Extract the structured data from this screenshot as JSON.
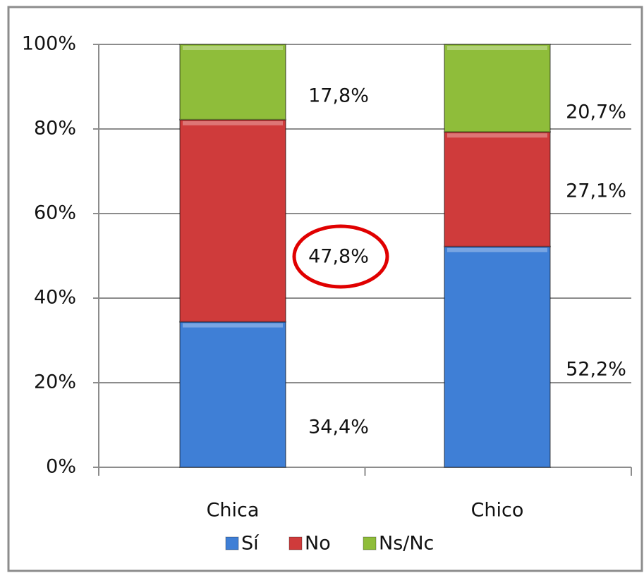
{
  "chart_data": {
    "type": "stacked_bar",
    "categories": [
      "Chica",
      "Chico"
    ],
    "series": [
      {
        "name": "Sí",
        "color": "#3f7fd6",
        "values": [
          34.4,
          52.2
        ],
        "value_labels": [
          "34,4%",
          "52,2%"
        ]
      },
      {
        "name": "No",
        "color": "#cf3b3b",
        "values": [
          47.8,
          27.1
        ],
        "value_labels": [
          "47,8%",
          "27,1%"
        ]
      },
      {
        "name": "Ns/Nc",
        "color": "#8fbd3a",
        "values": [
          17.8,
          20.7
        ],
        "value_labels": [
          "17,8%",
          "20,7%"
        ]
      }
    ],
    "ylim": [
      0,
      100
    ],
    "yticks": [
      {
        "value": 0,
        "label": "0%"
      },
      {
        "value": 20,
        "label": "20%"
      },
      {
        "value": 40,
        "label": "40%"
      },
      {
        "value": 60,
        "label": "60%"
      },
      {
        "value": 80,
        "label": "80%"
      },
      {
        "value": 100,
        "label": "100%"
      }
    ],
    "grid": true,
    "legend": "bottom"
  }
}
